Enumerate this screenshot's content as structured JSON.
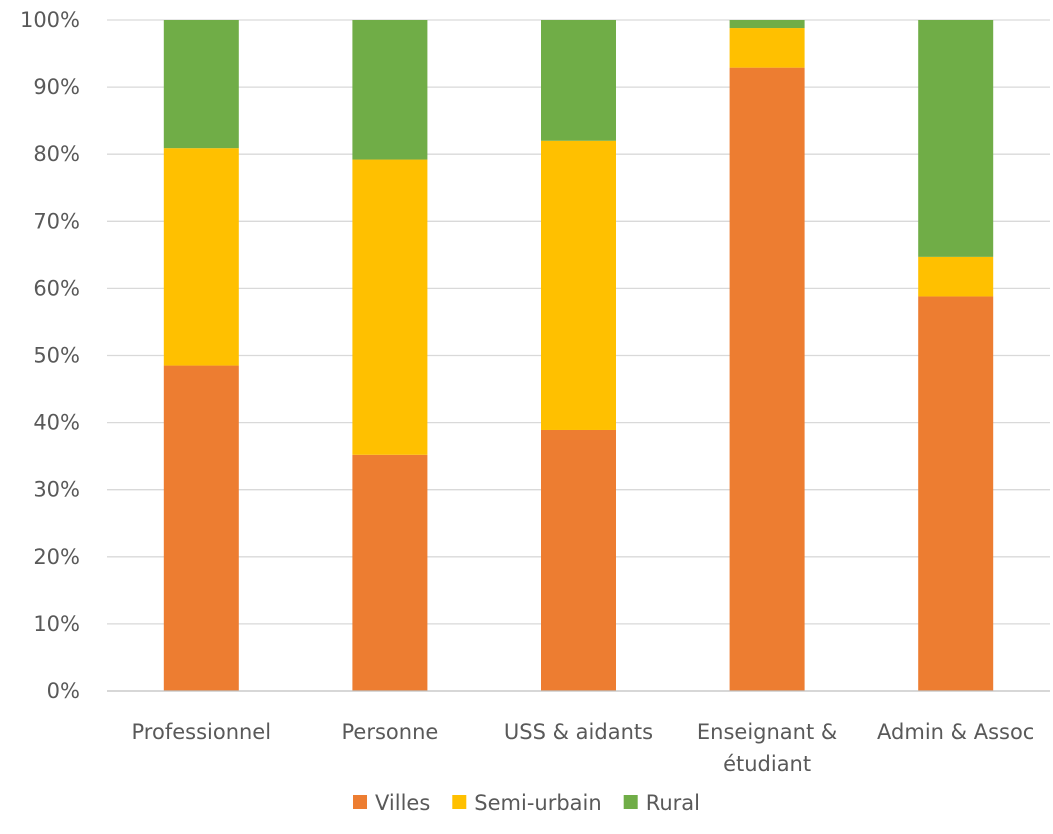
{
  "chart_data": {
    "type": "bar",
    "stacked": true,
    "percent_stacked": true,
    "categories": [
      [
        "Professionnel"
      ],
      [
        "Personne"
      ],
      [
        "USS & aidants"
      ],
      [
        "Enseignant &",
        "étudiant"
      ],
      [
        "Admin & Assoc"
      ]
    ],
    "series": [
      {
        "name": "Villes",
        "color": "#ED7D31",
        "values": [
          48.5,
          35.2,
          38.9,
          92.9,
          58.8
        ]
      },
      {
        "name": "Semi-urbain",
        "color": "#FFC000",
        "values": [
          32.4,
          44.0,
          43.1,
          5.9,
          5.9
        ]
      },
      {
        "name": "Rural",
        "color": "#70AD47",
        "values": [
          19.1,
          20.8,
          18.0,
          1.2,
          35.3
        ]
      }
    ],
    "y_ticks": [
      "0%",
      "10%",
      "20%",
      "30%",
      "40%",
      "50%",
      "60%",
      "70%",
      "80%",
      "90%",
      "100%"
    ],
    "ylim": [
      0,
      100
    ],
    "grid": true,
    "legend_position": "bottom",
    "title": "",
    "xlabel": "",
    "ylabel": ""
  }
}
